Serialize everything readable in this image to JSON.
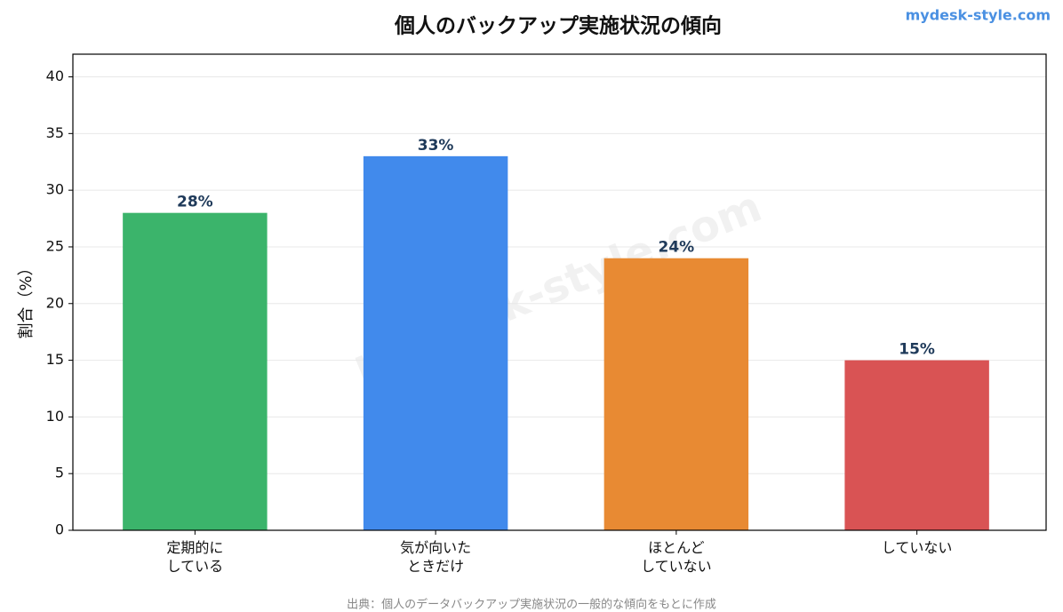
{
  "chart_data": {
    "type": "bar",
    "title": "個人のバックアップ実施状況の傾向",
    "ylabel": "割合（%）",
    "watermark": "mydesk-style.com",
    "source": "出典：個人のデータバックアップ実施状況の一般的な傾向をもとに作成",
    "categories": [
      "定期的に\nしている",
      "気が向いた\nときだけ",
      "ほとんど\nしていない",
      "していない"
    ],
    "values": [
      28,
      33,
      24,
      15
    ],
    "value_labels": [
      "28%",
      "33%",
      "24%",
      "15%"
    ],
    "colors": [
      "#3bb46b",
      "#418aec",
      "#e88a33",
      "#d95354"
    ],
    "ylim": [
      0,
      42
    ],
    "yticks": [
      0,
      5,
      10,
      15,
      20,
      25,
      30,
      35,
      40
    ],
    "grid": true
  }
}
